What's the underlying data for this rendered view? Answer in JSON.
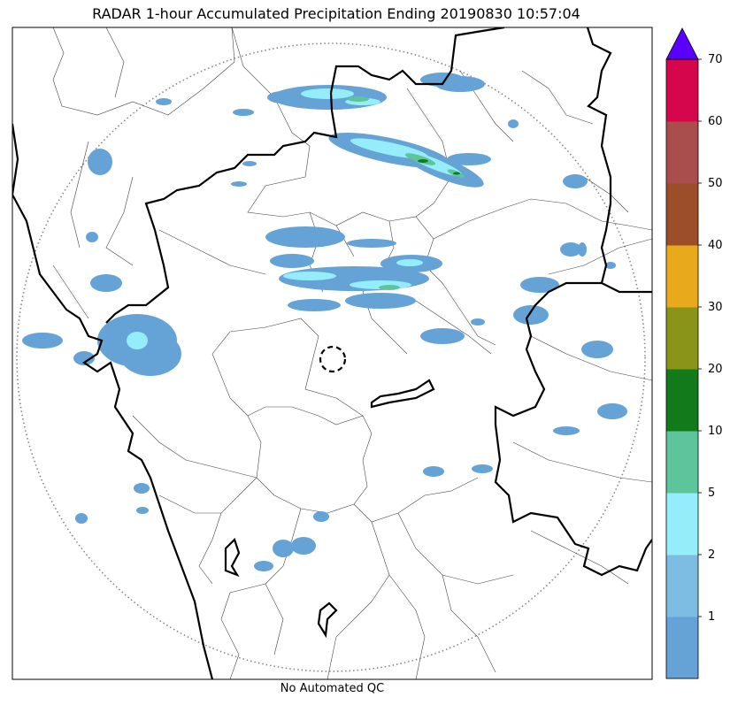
{
  "title": "RADAR 1-hour Accumulated Precipitation Ending 20190830 10:57:04",
  "footer": "No Automated QC",
  "colorbar": {
    "levels": [
      "1",
      "2",
      "5",
      "10",
      "20",
      "30",
      "40",
      "50",
      "60",
      "70"
    ],
    "colors": [
      "#65a3d6",
      "#7dbde4",
      "#95edfc",
      "#5dc49b",
      "#137a1c",
      "#8a9418",
      "#e8a91c",
      "#9c4e2a",
      "#aa4d4d",
      "#d5064b"
    ],
    "over_color": "#5a00ff"
  },
  "map_colors": {
    "rain_light": "#65a3d6",
    "rain_medium": "#95edfc",
    "rain_heavy": "#5dc49b",
    "rain_intense": "#137a1c"
  }
}
